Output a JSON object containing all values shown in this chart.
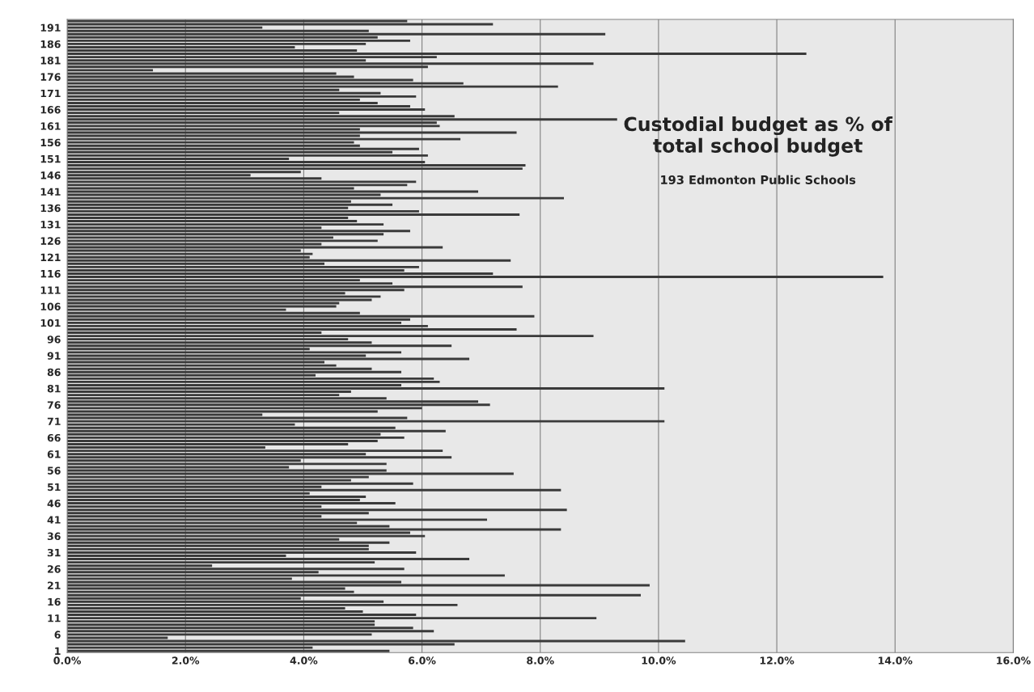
{
  "chart_data": {
    "type": "bar",
    "orientation": "horizontal",
    "title": "Custodial budget as % of\ntotal school budget",
    "subtitle": "193 Edmonton Public Schools",
    "categories": [
      null,
      null,
      "191",
      null,
      null,
      null,
      null,
      "186",
      null,
      null,
      null,
      null,
      "181",
      null,
      null,
      null,
      null,
      "176",
      null,
      null,
      null,
      null,
      "171",
      null,
      null,
      null,
      null,
      "166",
      null,
      null,
      null,
      null,
      "161",
      null,
      null,
      null,
      null,
      "156",
      null,
      null,
      null,
      null,
      "151",
      null,
      null,
      null,
      null,
      "146",
      null,
      null,
      null,
      null,
      "141",
      null,
      null,
      null,
      null,
      "136",
      null,
      null,
      null,
      null,
      "131",
      null,
      null,
      null,
      null,
      "126",
      null,
      null,
      null,
      null,
      "121",
      null,
      null,
      null,
      null,
      "116",
      null,
      null,
      null,
      null,
      "111",
      null,
      null,
      null,
      null,
      "106",
      null,
      null,
      null,
      null,
      "101",
      null,
      null,
      null,
      null,
      "96",
      null,
      null,
      null,
      null,
      "91",
      null,
      null,
      null,
      null,
      "86",
      null,
      null,
      null,
      null,
      "81",
      null,
      null,
      null,
      null,
      "76",
      null,
      null,
      null,
      null,
      "71",
      null,
      null,
      null,
      null,
      "66",
      null,
      null,
      null,
      null,
      "61",
      null,
      null,
      null,
      null,
      "56",
      null,
      null,
      null,
      null,
      "51",
      null,
      null,
      null,
      null,
      "46",
      null,
      null,
      null,
      null,
      "41",
      null,
      null,
      null,
      null,
      "36",
      null,
      null,
      null,
      null,
      "31",
      null,
      null,
      null,
      null,
      "26",
      null,
      null,
      null,
      null,
      "21",
      null,
      null,
      null,
      null,
      "16",
      null,
      null,
      null,
      null,
      "11",
      null,
      null,
      null,
      null,
      "6",
      null,
      null,
      null,
      null,
      "1"
    ],
    "values": [
      5.75,
      7.2,
      3.3,
      5.1,
      9.1,
      5.25,
      5.8,
      5.05,
      3.85,
      4.9,
      12.5,
      6.25,
      5.05,
      8.9,
      6.1,
      1.45,
      4.55,
      4.85,
      5.85,
      6.7,
      8.3,
      4.6,
      5.3,
      5.9,
      4.95,
      5.25,
      5.8,
      6.05,
      4.6,
      6.55,
      9.3,
      6.25,
      6.3,
      4.95,
      7.6,
      4.95,
      6.65,
      4.85,
      4.95,
      5.95,
      5.5,
      6.1,
      3.75,
      6.05,
      7.75,
      7.7,
      3.95,
      3.1,
      4.3,
      5.9,
      5.75,
      4.85,
      6.95,
      5.3,
      8.4,
      4.8,
      5.5,
      4.75,
      5.95,
      7.65,
      4.75,
      4.9,
      5.35,
      4.3,
      5.8,
      5.35,
      4.5,
      5.25,
      4.3,
      6.35,
      3.95,
      4.15,
      4.1,
      7.5,
      4.35,
      5.95,
      5.7,
      7.2,
      13.8,
      4.95,
      5.5,
      7.7,
      5.7,
      4.7,
      5.3,
      5.15,
      4.6,
      4.55,
      3.7,
      4.95,
      7.9,
      5.8,
      5.65,
      6.1,
      7.6,
      4.3,
      8.9,
      4.75,
      5.15,
      6.5,
      4.1,
      5.65,
      5.05,
      6.8,
      4.35,
      4.55,
      5.15,
      5.65,
      4.2,
      6.2,
      6.3,
      5.65,
      10.1,
      4.8,
      4.6,
      5.4,
      6.95,
      7.15,
      6.0,
      5.25,
      3.3,
      5.75,
      10.1,
      3.85,
      5.55,
      6.4,
      5.3,
      5.7,
      5.25,
      4.75,
      3.35,
      6.35,
      5.05,
      6.5,
      3.95,
      5.4,
      3.75,
      5.4,
      7.55,
      5.1,
      4.8,
      5.85,
      4.3,
      8.35,
      4.1,
      5.05,
      4.95,
      5.55,
      4.3,
      8.45,
      5.1,
      4.3,
      7.1,
      4.9,
      5.45,
      8.35,
      5.8,
      6.05,
      4.6,
      5.45,
      5.1,
      5.1,
      5.9,
      3.7,
      6.8,
      5.2,
      2.45,
      5.7,
      4.25,
      7.4,
      3.8,
      5.65,
      9.85,
      4.7,
      4.85,
      9.7,
      3.95,
      5.35,
      6.6,
      4.7,
      5.0,
      5.9,
      8.95,
      5.2,
      5.2,
      5.85,
      6.2,
      5.15,
      1.7,
      10.45,
      6.55,
      4.15,
      5.45
    ],
    "color": "#3a3a3a",
    "xlim": [
      0,
      16
    ],
    "xticks": [
      {
        "value": 0,
        "label": "0.0%"
      },
      {
        "value": 2,
        "label": "2.0%"
      },
      {
        "value": 4,
        "label": "4.0%"
      },
      {
        "value": 6,
        "label": "6.0%"
      },
      {
        "value": 8,
        "label": "8.0%"
      },
      {
        "value": 10,
        "label": "10.0%"
      },
      {
        "value": 12,
        "label": "12.0%"
      },
      {
        "value": 14,
        "label": "14.0%"
      },
      {
        "value": 16,
        "label": "16.0%"
      }
    ],
    "grid": "x"
  }
}
